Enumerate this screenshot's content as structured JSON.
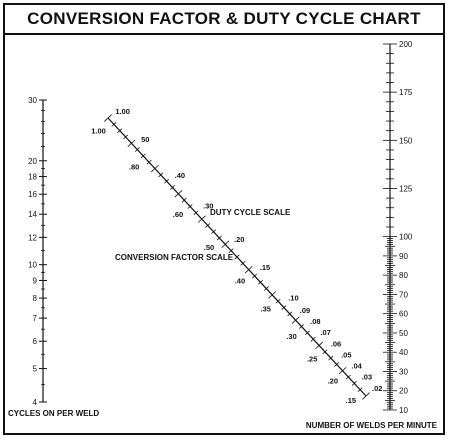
{
  "chart_data": {
    "type": "nomogram",
    "title": "CONVERSION FACTOR & DUTY CYCLE CHART",
    "scales": {
      "cycles_per_weld": {
        "label": "CYCLES ON PER WELD",
        "ticks": [
          "30",
          "20",
          "18",
          "16",
          "14",
          "12",
          "10",
          "9",
          "8",
          "7",
          "6",
          "5",
          "4"
        ],
        "minor_values": [
          28,
          26,
          24,
          22,
          19,
          17,
          15,
          13,
          11,
          9.5,
          8.5,
          7.5,
          6.5,
          5.5,
          4.5
        ]
      },
      "welds_per_minute": {
        "label": "NUMBER OF WELDS PER MINUTE",
        "range": [
          10,
          200
        ],
        "major_ticks": [
          "200",
          "175",
          "150",
          "125",
          "100",
          "90",
          "80",
          "70",
          "60",
          "50",
          "40",
          "30",
          "20",
          "10"
        ]
      },
      "duty_cycle": {
        "label": "DUTY CYCLE SCALE",
        "ticks": [
          "1.00",
          "50",
          ".40",
          ".30",
          ".20",
          ".15",
          ".10",
          ".09",
          ".08",
          ".07",
          ".06",
          ".05",
          ".04",
          ".03",
          ".02"
        ]
      },
      "conversion_factor": {
        "label": "CONVERSION FACTOR SCALE",
        "ticks": [
          "1.00",
          ".80",
          ".60",
          ".50",
          ".40",
          ".35",
          ".30",
          ".25",
          ".20",
          ".15"
        ]
      }
    }
  }
}
